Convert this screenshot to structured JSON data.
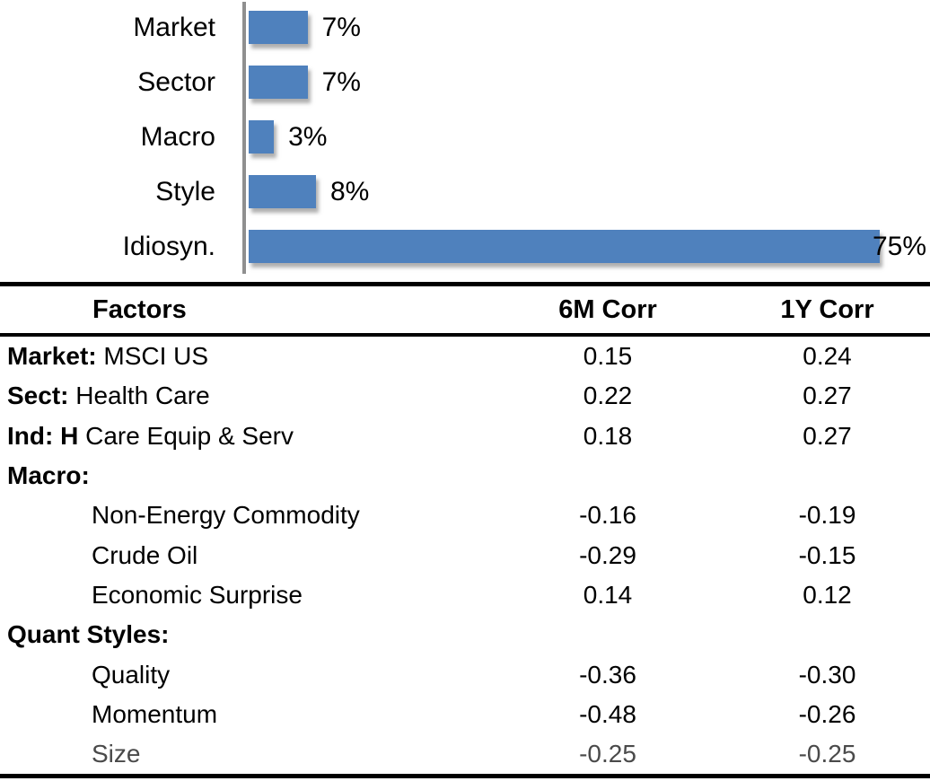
{
  "chart_data": {
    "type": "bar",
    "orientation": "horizontal",
    "title": "",
    "xlabel": "",
    "ylabel": "",
    "categories": [
      "Market",
      "Sector",
      "Macro",
      "Style",
      "Idiosyn."
    ],
    "values": [
      7,
      7,
      3,
      8,
      75
    ],
    "value_labels": [
      "7%",
      "7%",
      "3%",
      "8%",
      "75%"
    ],
    "xlim": [
      0,
      80
    ],
    "grid": false,
    "legend": false,
    "bar_color": "#4F81BD",
    "axis_line_color": "#8f8f8f"
  },
  "table": {
    "headers": {
      "factors": "Factors",
      "corr6m": "6M Corr",
      "corr1y": "1Y Corr"
    },
    "rows": [
      {
        "bold": "Market:",
        "text": " MSCI US",
        "indent": false,
        "muted": false,
        "corr6m": "0.15",
        "corr1y": "0.24"
      },
      {
        "bold": "Sect:",
        "text": " Health Care",
        "indent": false,
        "muted": false,
        "corr6m": "0.22",
        "corr1y": "0.27"
      },
      {
        "bold": "Ind: H",
        "text": " Care Equip & Serv",
        "indent": false,
        "muted": false,
        "corr6m": "0.18",
        "corr1y": "0.27"
      },
      {
        "bold": "Macro:",
        "text": "",
        "indent": false,
        "muted": false,
        "corr6m": "",
        "corr1y": ""
      },
      {
        "bold": "",
        "text": "Non-Energy Commodity",
        "indent": true,
        "muted": false,
        "corr6m": "-0.16",
        "corr1y": "-0.19"
      },
      {
        "bold": "",
        "text": "Crude Oil",
        "indent": true,
        "muted": false,
        "corr6m": "-0.29",
        "corr1y": "-0.15"
      },
      {
        "bold": "",
        "text": "Economic Surprise",
        "indent": true,
        "muted": false,
        "corr6m": "0.14",
        "corr1y": "0.12"
      },
      {
        "bold": "Quant Styles:",
        "text": "",
        "indent": false,
        "muted": false,
        "corr6m": "",
        "corr1y": ""
      },
      {
        "bold": "",
        "text": "Quality",
        "indent": true,
        "muted": false,
        "corr6m": "-0.36",
        "corr1y": "-0.30"
      },
      {
        "bold": "",
        "text": "Momentum",
        "indent": true,
        "muted": false,
        "corr6m": "-0.48",
        "corr1y": "-0.26"
      },
      {
        "bold": "",
        "text": "Size",
        "indent": true,
        "muted": true,
        "corr6m": "-0.25",
        "corr1y": "-0.25"
      }
    ]
  }
}
